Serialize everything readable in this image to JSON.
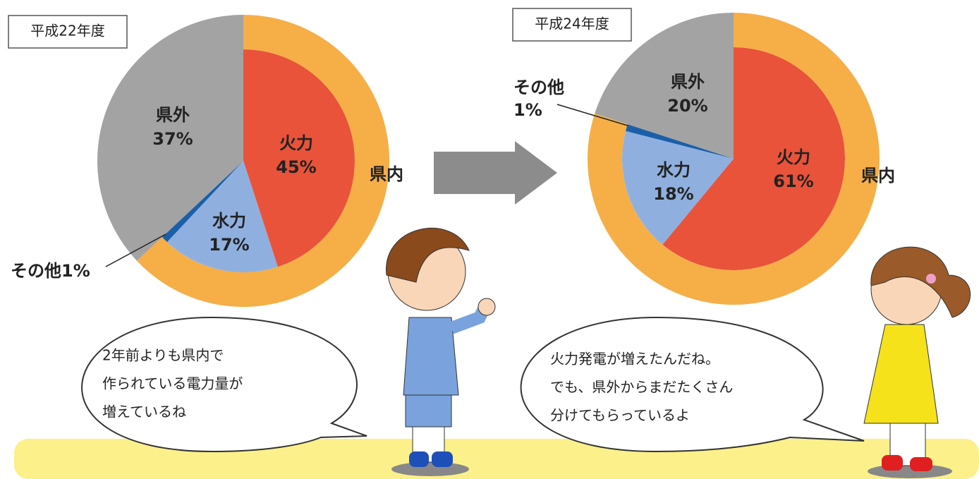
{
  "chart_data": [
    {
      "type": "pie",
      "title": "平成22年度",
      "categories": [
        "火力",
        "水力",
        "その他",
        "県外"
      ],
      "values": [
        45,
        17,
        1,
        37
      ],
      "value_labels": [
        "45%",
        "17%",
        "1%",
        "37%"
      ],
      "colors": [
        "#e9533a",
        "#8fb0df",
        "#1b5fa8",
        "#a3a3a3"
      ],
      "ring_label": "県内",
      "ring_color": "#f6ae47"
    },
    {
      "type": "pie",
      "title": "平成24年度",
      "categories": [
        "火力",
        "水力",
        "その他",
        "県外"
      ],
      "values": [
        61,
        18,
        1,
        20
      ],
      "value_labels": [
        "61%",
        "18%",
        "1%",
        "20%"
      ],
      "colors": [
        "#e9533a",
        "#8fb0df",
        "#1b5fa8",
        "#a3a3a3"
      ],
      "ring_label": "県内",
      "ring_color": "#f6ae47"
    }
  ],
  "speech": [
    [
      "2年前よりも県内で",
      "作られている電力量が",
      "増えているね"
    ],
    [
      "火力発電が増えたんだね。",
      "でも、県外からまだたくさん",
      "分けてもらっているよ"
    ]
  ]
}
